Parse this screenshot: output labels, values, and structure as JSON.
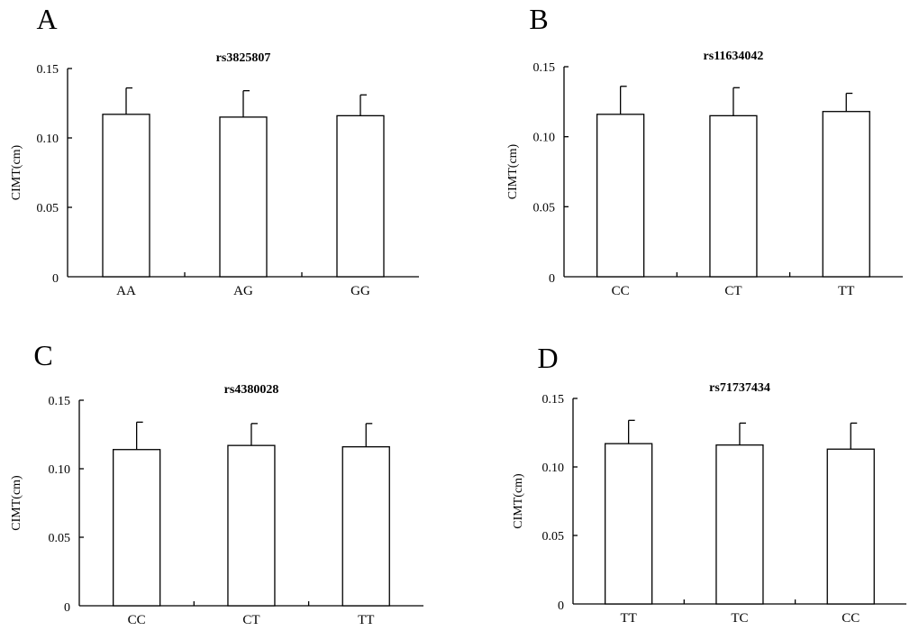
{
  "chart_data": [
    {
      "panel": "A",
      "type": "bar",
      "title": "rs3825807",
      "ylabel": "CIMT(cm)",
      "xlabel": "",
      "ylim": [
        0,
        0.15
      ],
      "yticks": [
        "0",
        "0.05",
        "0.10",
        "0.15"
      ],
      "categories": [
        "AA",
        "AG",
        "GG"
      ],
      "values": [
        0.117,
        0.115,
        0.116
      ],
      "errors": [
        0.019,
        0.019,
        0.015
      ]
    },
    {
      "panel": "B",
      "type": "bar",
      "title": "rs11634042",
      "ylabel": "CIMT(cm)",
      "xlabel": "",
      "ylim": [
        0,
        0.15
      ],
      "yticks": [
        "0",
        "0.05",
        "0.10",
        "0.15"
      ],
      "categories": [
        "CC",
        "CT",
        "TT"
      ],
      "values": [
        0.116,
        0.115,
        0.118
      ],
      "errors": [
        0.02,
        0.02,
        0.013
      ]
    },
    {
      "panel": "C",
      "type": "bar",
      "title": "rs4380028",
      "ylabel": "CIMT(cm)",
      "xlabel": "",
      "ylim": [
        0,
        0.15
      ],
      "yticks": [
        "0",
        "0.05",
        "0.10",
        "0.15"
      ],
      "categories": [
        "CC",
        "CT",
        "TT"
      ],
      "values": [
        0.114,
        0.117,
        0.116
      ],
      "errors": [
        0.02,
        0.016,
        0.017
      ]
    },
    {
      "panel": "D",
      "type": "bar",
      "title": "rs71737434",
      "ylabel": "CIMT(cm)",
      "xlabel": "",
      "ylim": [
        0,
        0.15
      ],
      "yticks": [
        "0",
        "0.05",
        "0.10",
        "0.15"
      ],
      "categories": [
        "TT",
        "TC",
        "CC"
      ],
      "values": [
        0.117,
        0.116,
        0.113
      ],
      "errors": [
        0.017,
        0.016,
        0.019
      ]
    }
  ]
}
